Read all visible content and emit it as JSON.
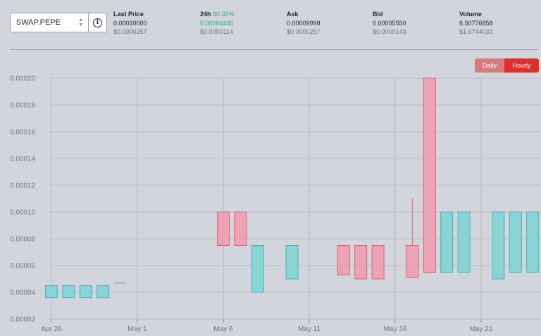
{
  "header": {
    "symbol": "SWAP.PEPE",
    "info_icon": "info-icon",
    "stats": {
      "last_price": {
        "label": "Last Price",
        "value": "0.00010000",
        "usd": "$0.0000257"
      },
      "change_24h": {
        "label": "24h",
        "pct": "80.02%",
        "value": "0.00004445",
        "usd": "$0.0000114"
      },
      "ask": {
        "label": "Ask",
        "value": "0.00009998",
        "usd": "$0.0000257"
      },
      "bid": {
        "label": "Bid",
        "value": "0.00005550",
        "usd": "$0.0000143"
      },
      "volume": {
        "label": "Volume",
        "value": "6.50776858",
        "usd": "$1.6744033"
      }
    }
  },
  "controls": {
    "daily": "Daily",
    "hourly": "Hourly",
    "active": "Hourly"
  },
  "colors": {
    "up": "#7fd3d3",
    "up_stroke": "#3fb7b7",
    "down": "#f29aab",
    "down_stroke": "#e0607a",
    "accent": "#e02d2d",
    "positive_text": "#22b573"
  },
  "chart_data": {
    "type": "candlestick",
    "x_ticks": [
      "Apr 26",
      "May 1",
      "May 6",
      "May 11",
      "May 16",
      "May 21"
    ],
    "y_ticks": [
      "0.00020",
      "0.00018",
      "0.00016",
      "0.00014",
      "0.00012",
      "0.00010",
      "0.00008",
      "0.00006",
      "0.00004",
      "0.00002"
    ],
    "ylim": [
      2e-05,
      0.0002
    ],
    "grid": true,
    "candles": [
      {
        "date": "Apr 26",
        "open": 3.6e-05,
        "close": 4.5e-05,
        "low": 3.6e-05,
        "high": 4.5e-05
      },
      {
        "date": "Apr 27",
        "open": 3.6e-05,
        "close": 4.5e-05,
        "low": 3.6e-05,
        "high": 4.5e-05
      },
      {
        "date": "Apr 28",
        "open": 3.6e-05,
        "close": 4.5e-05,
        "low": 3.6e-05,
        "high": 4.5e-05
      },
      {
        "date": "Apr 29",
        "open": 3.6e-05,
        "close": 4.5e-05,
        "low": 3.6e-05,
        "high": 4.5e-05
      },
      {
        "date": "Apr 30",
        "open": 4.7e-05,
        "close": 4.7e-05,
        "low": 4.7e-05,
        "high": 4.7e-05
      },
      {
        "date": "May 6",
        "open": 0.0001,
        "close": 7.5e-05,
        "low": 7.5e-05,
        "high": 0.0001
      },
      {
        "date": "May 7",
        "open": 0.0001,
        "close": 7.5e-05,
        "low": 7.5e-05,
        "high": 0.0001
      },
      {
        "date": "May 8",
        "open": 4e-05,
        "close": 7.5e-05,
        "low": 4e-05,
        "high": 7.5e-05
      },
      {
        "date": "May 10",
        "open": 5e-05,
        "close": 7.5e-05,
        "low": 5e-05,
        "high": 7.5e-05
      },
      {
        "date": "May 13",
        "open": 7.5e-05,
        "close": 5.3e-05,
        "low": 5.3e-05,
        "high": 7.5e-05
      },
      {
        "date": "May 14",
        "open": 7.5e-05,
        "close": 5e-05,
        "low": 5e-05,
        "high": 7.5e-05
      },
      {
        "date": "May 15",
        "open": 7.5e-05,
        "close": 5e-05,
        "low": 5e-05,
        "high": 7.5e-05
      },
      {
        "date": "May 17",
        "open": 7.5e-05,
        "close": 5.1e-05,
        "low": 5.1e-05,
        "high": 0.00011
      },
      {
        "date": "May 18",
        "open": 0.0002,
        "close": 5.5e-05,
        "low": 5.5e-05,
        "high": 0.0002
      },
      {
        "date": "May 19",
        "open": 5.5e-05,
        "close": 0.0001,
        "low": 5.5e-05,
        "high": 0.0001
      },
      {
        "date": "May 20",
        "open": 5.5e-05,
        "close": 0.0001,
        "low": 5.5e-05,
        "high": 0.0001
      },
      {
        "date": "May 22",
        "open": 5e-05,
        "close": 0.0001,
        "low": 5e-05,
        "high": 0.0001
      },
      {
        "date": "May 23",
        "open": 5.5e-05,
        "close": 0.0001,
        "low": 5.5e-05,
        "high": 0.0001
      },
      {
        "date": "May 24",
        "open": 5.5e-05,
        "close": 0.0001,
        "low": 5.5e-05,
        "high": 0.0001
      }
    ]
  }
}
